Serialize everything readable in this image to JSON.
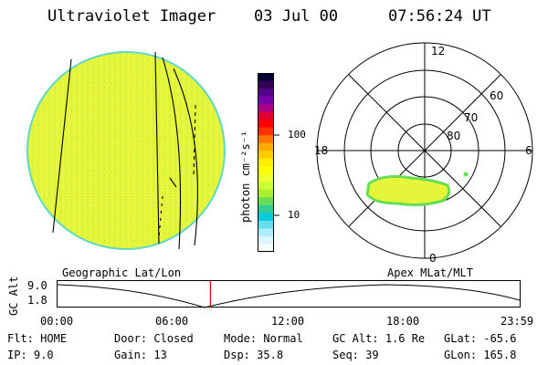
{
  "header": {
    "instrument": "Ultraviolet Imager",
    "date": "03 Jul 00",
    "time": "07:56:24 UT"
  },
  "colorbar": {
    "label": "photon cm⁻²s⁻¹",
    "ticks": [
      "100",
      "10"
    ],
    "colors": [
      "#000033",
      "#330055",
      "#550088",
      "#7700aa",
      "#aa0088",
      "#dd0033",
      "#ff0000",
      "#ff3300",
      "#ff7700",
      "#ffaa00",
      "#ffcc00",
      "#ffee00",
      "#ffff00",
      "#eeff33",
      "#ccff33",
      "#aaee33",
      "#66dd55",
      "#33cc99",
      "#00ccdd",
      "#66ddee",
      "#aaeeff",
      "#ddf7ff",
      "#f4fbff"
    ]
  },
  "polar_plot": {
    "mlt_labels": {
      "top": "12",
      "left": "18",
      "right": "6",
      "bottom": "0"
    },
    "lat_labels": [
      "60",
      "70",
      "80"
    ]
  },
  "timeline": {
    "left_label": "Geographic Lat/Lon",
    "right_label": "Apex MLat/MLT",
    "y_axis_label": "GC Alt",
    "y_ticks": [
      "9.0",
      "1.8"
    ],
    "x_ticks": [
      "00:00",
      "06:00",
      "12:00",
      "18:00",
      "23:59"
    ],
    "current_marker_hours": 7.94
  },
  "status": {
    "row1": [
      {
        "label": "Flt:",
        "value": "HOME"
      },
      {
        "label": "Door:",
        "value": "Closed"
      },
      {
        "label": "Mode:",
        "value": "Normal"
      },
      {
        "label": "GC Alt:",
        "value": "1.6 Re"
      },
      {
        "label": "GLat:",
        "value": "-65.6"
      }
    ],
    "row2": [
      {
        "label": "IP:",
        "value": "9.0"
      },
      {
        "label": "Gain:",
        "value": "13"
      },
      {
        "label": "Dsp:",
        "value": "35.8"
      },
      {
        "label": "Seq:",
        "value": "39"
      },
      {
        "label": "GLon:",
        "value": "165.8"
      }
    ]
  }
}
